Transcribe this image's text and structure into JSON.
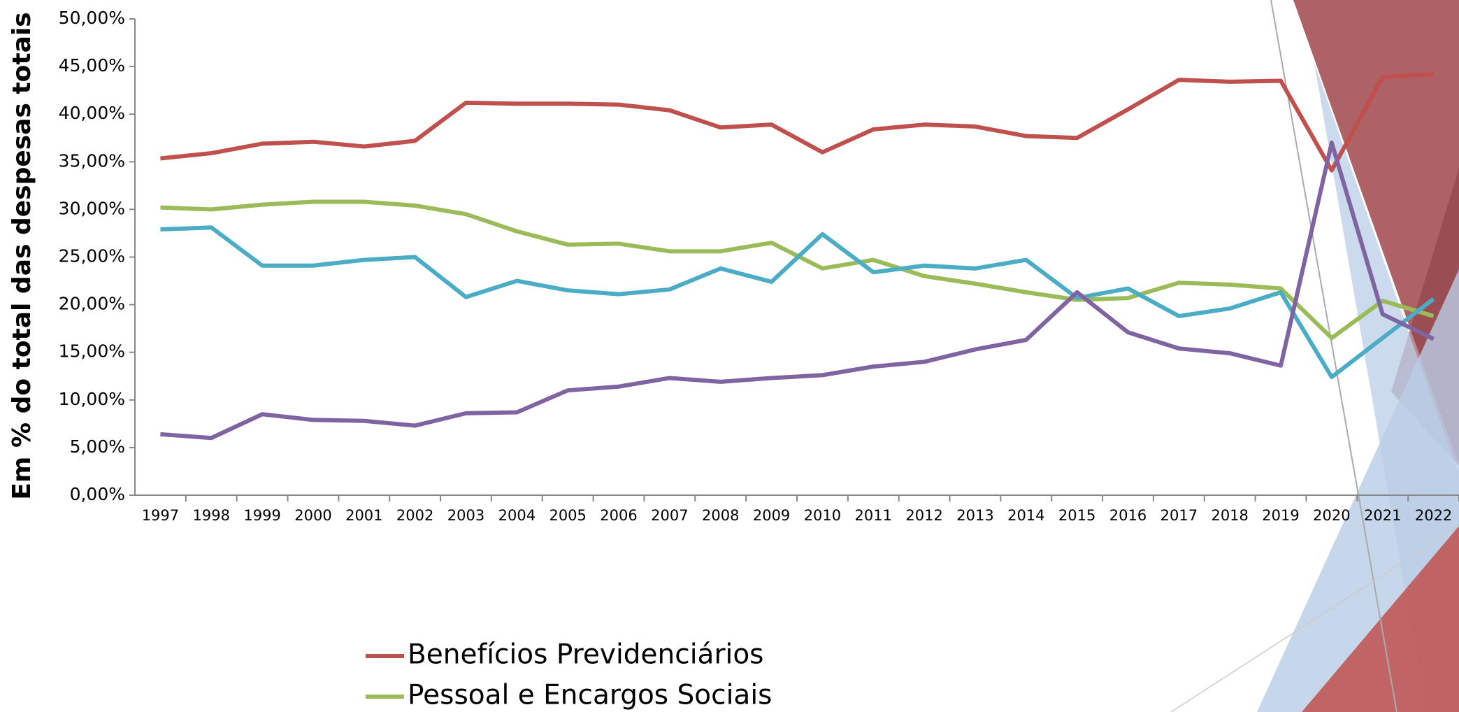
{
  "chart_data": {
    "type": "line",
    "y_label": "Em % do total das despesas totais",
    "categories": [
      "1997",
      "1998",
      "1999",
      "2000",
      "2001",
      "2002",
      "2003",
      "2004",
      "2005",
      "2006",
      "2007",
      "2008",
      "2009",
      "2010",
      "2011",
      "2012",
      "2013",
      "2014",
      "2015",
      "2016",
      "2017",
      "2018",
      "2019",
      "2020",
      "2021",
      "2022"
    ],
    "series": [
      {
        "name": "Benefícios Previdenciários",
        "color": "#c0504d",
        "values": [
          35.35,
          35.9,
          36.9,
          37.1,
          36.6,
          37.2,
          41.2,
          41.1,
          41.1,
          41.0,
          40.4,
          38.6,
          38.9,
          36.0,
          38.4,
          38.9,
          38.7,
          37.7,
          37.5,
          40.5,
          43.6,
          43.4,
          43.5,
          34.1,
          43.9,
          44.2
        ]
      },
      {
        "name": "Pessoal e Encargos Sociais",
        "color": "#9bbb59",
        "values": [
          30.2,
          30.0,
          30.5,
          30.8,
          30.8,
          30.4,
          29.5,
          27.7,
          26.3,
          26.4,
          25.6,
          25.6,
          26.5,
          23.8,
          24.7,
          23.0,
          22.2,
          21.3,
          20.5,
          20.7,
          22.3,
          22.1,
          21.7,
          16.5,
          20.4,
          18.8
        ]
      },
      {
        "color": "#4bacc6",
        "values": [
          27.9,
          28.1,
          24.1,
          24.1,
          24.7,
          25.0,
          20.8,
          22.5,
          21.5,
          21.1,
          21.6,
          23.8,
          22.4,
          27.4,
          23.4,
          24.1,
          23.8,
          24.7,
          20.7,
          21.7,
          18.8,
          19.6,
          21.3,
          12.4,
          16.5,
          20.6
        ]
      },
      {
        "color": "#8064a2",
        "values": [
          6.4,
          6.0,
          8.5,
          7.9,
          7.8,
          7.3,
          8.6,
          8.7,
          11.0,
          11.4,
          12.3,
          11.9,
          12.3,
          12.6,
          13.5,
          14.0,
          15.3,
          16.3,
          21.3,
          17.1,
          15.4,
          14.9,
          13.6,
          37.0,
          19.0,
          16.4
        ]
      }
    ],
    "ylim": [
      0,
      50
    ],
    "yticks": [
      {
        "value": 0,
        "label": "0,00%"
      },
      {
        "value": 5,
        "label": "5,00%"
      },
      {
        "value": 10,
        "label": "10,00%"
      },
      {
        "value": 15,
        "label": "15,00%"
      },
      {
        "value": 20,
        "label": "20,00%"
      },
      {
        "value": 25,
        "label": "25,00%"
      },
      {
        "value": 30,
        "label": "30,00%"
      },
      {
        "value": 35,
        "label": "35,00%"
      },
      {
        "value": 40,
        "label": "40,00%"
      },
      {
        "value": 45,
        "label": "45,00%"
      },
      {
        "value": 50,
        "label": "50,00%"
      }
    ],
    "grid": false
  }
}
